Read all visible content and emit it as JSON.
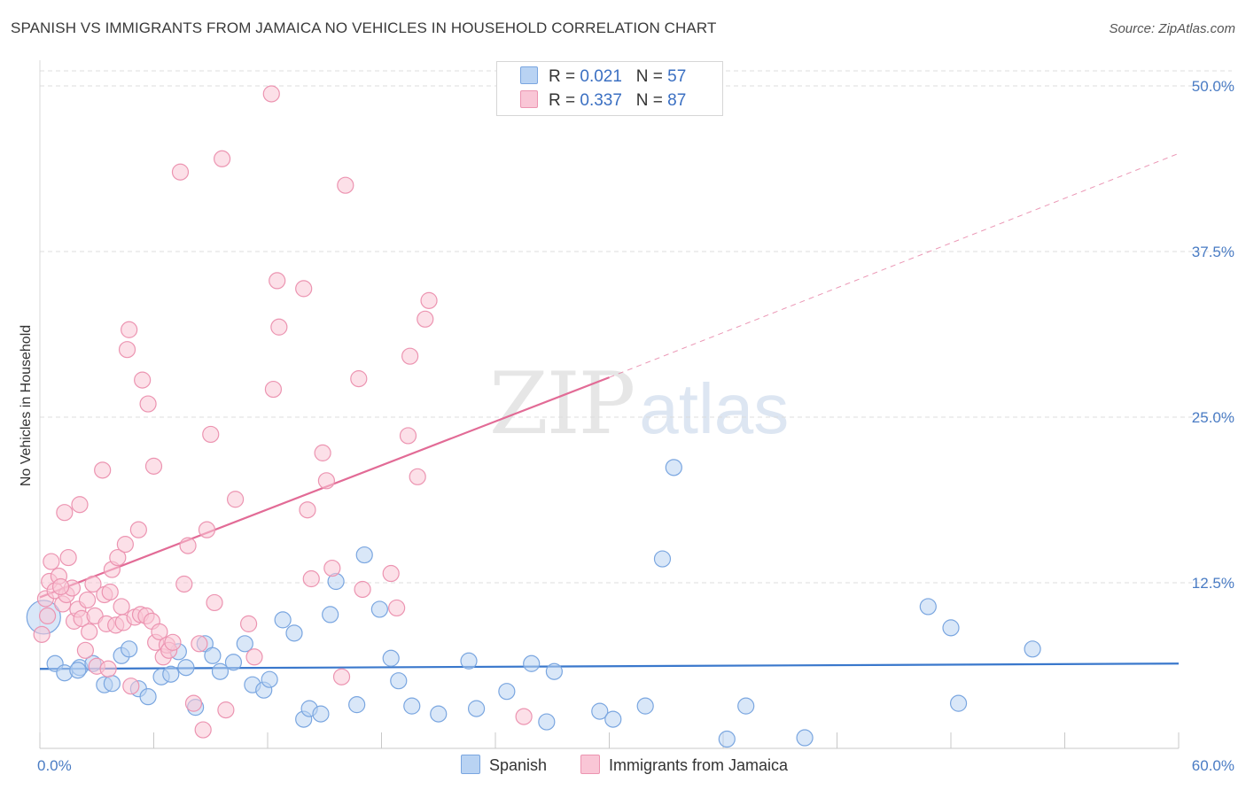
{
  "title": "SPANISH VS IMMIGRANTS FROM JAMAICA NO VEHICLES IN HOUSEHOLD CORRELATION CHART",
  "source": "Source: ZipAtlas.com",
  "watermark": {
    "zip": "ZIP",
    "atlas": "atlas"
  },
  "legend": {
    "r_label": "R =",
    "n_label": "N =",
    "rows": [
      {
        "r": "0.021",
        "n": "57",
        "fill": "#b9d3f3",
        "stroke": "#7aa6e0"
      },
      {
        "r": "0.337",
        "n": "87",
        "fill": "#f9c6d6",
        "stroke": "#ec94b1"
      }
    ]
  },
  "bottom_legend": [
    "Spanish",
    "Immigrants from Jamaica"
  ],
  "chart_data": {
    "type": "scatter",
    "ylabel": "No Vehicles in Household",
    "xlabel": "",
    "xlim": [
      0,
      60
    ],
    "ylim": [
      0,
      50
    ],
    "x_tick_labels": [
      "0.0%",
      "60.0%"
    ],
    "y_ticks": [
      12.5,
      25.0,
      37.5,
      50.0
    ],
    "y_tick_labels": [
      "12.5%",
      "25.0%",
      "37.5%",
      "50.0%"
    ],
    "grid": "horizontal dashed",
    "series": [
      {
        "name": "Spanish",
        "color": "#7aa6e0",
        "fill": "#b9d3f3",
        "line_color": "#3a78cc",
        "trend": {
          "x0": 0,
          "y0": 6.0,
          "x1": 60,
          "y1": 6.4
        },
        "points": [
          [
            0.2,
            9.9
          ],
          [
            0.8,
            6.4
          ],
          [
            1.3,
            5.7
          ],
          [
            2.1,
            6.1
          ],
          [
            2.8,
            6.4
          ],
          [
            3.4,
            4.8
          ],
          [
            3.8,
            4.9
          ],
          [
            4.3,
            7.0
          ],
          [
            4.7,
            7.5
          ],
          [
            5.2,
            4.5
          ],
          [
            5.7,
            3.9
          ],
          [
            6.4,
            5.4
          ],
          [
            6.9,
            5.6
          ],
          [
            7.3,
            7.3
          ],
          [
            7.7,
            6.1
          ],
          [
            8.2,
            3.1
          ],
          [
            8.7,
            7.9
          ],
          [
            9.1,
            7.0
          ],
          [
            9.5,
            5.8
          ],
          [
            10.2,
            6.5
          ],
          [
            10.8,
            7.9
          ],
          [
            11.2,
            4.8
          ],
          [
            11.8,
            4.4
          ],
          [
            12.1,
            5.2
          ],
          [
            12.8,
            9.7
          ],
          [
            13.4,
            8.7
          ],
          [
            13.9,
            2.2
          ],
          [
            14.2,
            3.0
          ],
          [
            14.8,
            2.6
          ],
          [
            15.3,
            10.1
          ],
          [
            15.6,
            12.6
          ],
          [
            16.7,
            3.3
          ],
          [
            17.1,
            14.6
          ],
          [
            17.9,
            10.5
          ],
          [
            18.5,
            6.8
          ],
          [
            18.9,
            5.1
          ],
          [
            19.6,
            3.2
          ],
          [
            21.0,
            2.6
          ],
          [
            22.6,
            6.6
          ],
          [
            23.0,
            3.0
          ],
          [
            24.6,
            4.3
          ],
          [
            25.9,
            6.4
          ],
          [
            26.7,
            2.0
          ],
          [
            27.1,
            5.8
          ],
          [
            29.5,
            2.8
          ],
          [
            30.2,
            2.2
          ],
          [
            31.9,
            3.2
          ],
          [
            32.8,
            14.3
          ],
          [
            33.4,
            21.2
          ],
          [
            36.2,
            0.7
          ],
          [
            37.2,
            3.2
          ],
          [
            40.3,
            0.8
          ],
          [
            46.8,
            10.7
          ],
          [
            48.0,
            9.1
          ],
          [
            48.4,
            3.4
          ],
          [
            52.3,
            7.5
          ],
          [
            2.0,
            5.9
          ]
        ]
      },
      {
        "name": "Immigrants from Jamaica",
        "color": "#ec94b1",
        "fill": "#f9c6d6",
        "line_color": "#e26b96",
        "trend": {
          "x0": 0,
          "y0": 11.4,
          "x1": 30,
          "y1": 28.0
        },
        "trend_extension": {
          "x0": 30,
          "y0": 28.0,
          "x1": 60,
          "y1": 44.9
        },
        "points": [
          [
            0.1,
            8.6
          ],
          [
            0.3,
            11.3
          ],
          [
            0.5,
            12.6
          ],
          [
            0.6,
            14.1
          ],
          [
            0.8,
            11.9
          ],
          [
            1.0,
            13.0
          ],
          [
            1.2,
            10.9
          ],
          [
            1.3,
            17.8
          ],
          [
            1.4,
            11.6
          ],
          [
            1.5,
            14.4
          ],
          [
            1.7,
            12.1
          ],
          [
            1.8,
            9.6
          ],
          [
            2.0,
            10.5
          ],
          [
            2.1,
            18.4
          ],
          [
            2.2,
            9.8
          ],
          [
            2.4,
            7.4
          ],
          [
            2.5,
            11.2
          ],
          [
            2.6,
            8.8
          ],
          [
            2.8,
            12.4
          ],
          [
            2.9,
            10.0
          ],
          [
            3.0,
            6.2
          ],
          [
            3.3,
            21.0
          ],
          [
            3.4,
            11.6
          ],
          [
            3.5,
            9.4
          ],
          [
            3.6,
            6.0
          ],
          [
            3.7,
            11.8
          ],
          [
            3.8,
            13.5
          ],
          [
            4.0,
            9.3
          ],
          [
            4.1,
            14.4
          ],
          [
            4.3,
            10.7
          ],
          [
            4.4,
            9.5
          ],
          [
            4.5,
            15.4
          ],
          [
            4.6,
            30.1
          ],
          [
            4.7,
            31.6
          ],
          [
            4.8,
            4.7
          ],
          [
            5.0,
            9.9
          ],
          [
            5.2,
            16.5
          ],
          [
            5.3,
            10.1
          ],
          [
            5.4,
            27.8
          ],
          [
            5.6,
            10.0
          ],
          [
            5.7,
            26.0
          ],
          [
            5.9,
            9.6
          ],
          [
            6.0,
            21.3
          ],
          [
            6.1,
            8.0
          ],
          [
            6.3,
            8.8
          ],
          [
            6.5,
            6.9
          ],
          [
            6.7,
            7.8
          ],
          [
            6.8,
            7.4
          ],
          [
            7.0,
            8.0
          ],
          [
            7.4,
            43.5
          ],
          [
            7.6,
            12.4
          ],
          [
            7.8,
            15.3
          ],
          [
            8.1,
            3.4
          ],
          [
            8.4,
            7.9
          ],
          [
            8.6,
            1.4
          ],
          [
            8.8,
            16.5
          ],
          [
            9.0,
            23.7
          ],
          [
            9.6,
            44.5
          ],
          [
            9.8,
            2.9
          ],
          [
            10.3,
            18.8
          ],
          [
            11.0,
            9.4
          ],
          [
            11.3,
            6.9
          ],
          [
            12.2,
            49.4
          ],
          [
            12.3,
            27.1
          ],
          [
            12.5,
            35.3
          ],
          [
            12.6,
            31.8
          ],
          [
            13.9,
            34.7
          ],
          [
            14.1,
            18.0
          ],
          [
            14.3,
            12.8
          ],
          [
            14.9,
            22.3
          ],
          [
            15.1,
            20.2
          ],
          [
            15.4,
            13.6
          ],
          [
            15.9,
            5.4
          ],
          [
            16.1,
            42.5
          ],
          [
            16.8,
            27.9
          ],
          [
            17.0,
            12.0
          ],
          [
            18.5,
            13.2
          ],
          [
            18.8,
            10.6
          ],
          [
            19.4,
            23.6
          ],
          [
            19.5,
            29.6
          ],
          [
            19.9,
            20.5
          ],
          [
            20.3,
            32.4
          ],
          [
            20.5,
            33.8
          ],
          [
            25.5,
            2.4
          ],
          [
            0.4,
            10.0
          ],
          [
            1.1,
            12.2
          ],
          [
            9.2,
            11.0
          ]
        ]
      }
    ]
  }
}
